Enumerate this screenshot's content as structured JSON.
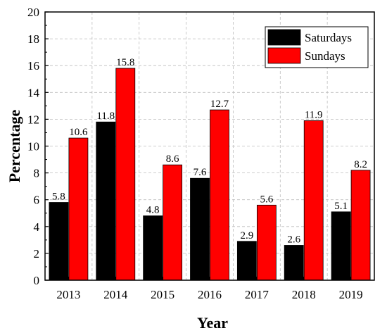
{
  "chart_data": {
    "type": "bar",
    "categories": [
      "2013",
      "2014",
      "2015",
      "2016",
      "2017",
      "2018",
      "2019"
    ],
    "series": [
      {
        "name": "Saturdays",
        "values": [
          5.8,
          11.8,
          4.8,
          7.6,
          2.9,
          2.6,
          5.1
        ],
        "color": "#000000"
      },
      {
        "name": "Sundays",
        "values": [
          10.6,
          15.8,
          8.6,
          12.7,
          5.6,
          11.9,
          8.2
        ],
        "color": "#ff0000"
      }
    ],
    "xlabel": "Year",
    "ylabel": "Percentage",
    "ylim": [
      0,
      20
    ],
    "yticks": [
      0,
      2,
      4,
      6,
      8,
      10,
      12,
      14,
      16,
      18,
      20
    ],
    "grid": true,
    "legend_position": "top-right"
  }
}
